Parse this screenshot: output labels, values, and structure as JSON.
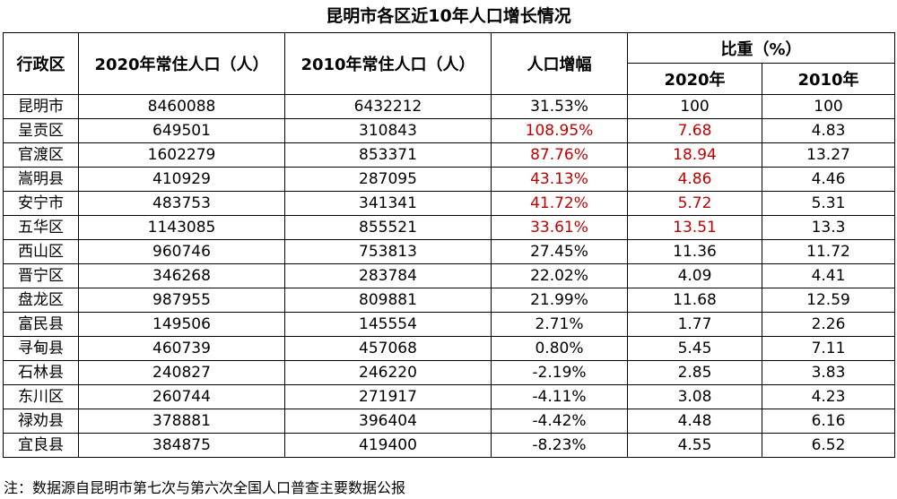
{
  "title": "昆明市各区近10年人口增长情况",
  "headers": {
    "district": "行政区",
    "pop2020": "2020年常住人口（人）",
    "pop2010": "2010年常住人口（人）",
    "growth": "人口增幅",
    "share": "比重（%）",
    "share2020": "2020年",
    "share2010": "2010年"
  },
  "highlight_color": "#c00000",
  "rows": [
    {
      "name": "昆明市",
      "pop2020": "8460088",
      "pop2010": "6432212",
      "growth": "31.53%",
      "share2020": "100",
      "share2010": "100",
      "hl": false
    },
    {
      "name": "呈贡区",
      "pop2020": "649501",
      "pop2010": "310843",
      "growth": "108.95%",
      "share2020": "7.68",
      "share2010": "4.83",
      "hl": true
    },
    {
      "name": "官渡区",
      "pop2020": "1602279",
      "pop2010": "853371",
      "growth": "87.76%",
      "share2020": "18.94",
      "share2010": "13.27",
      "hl": true
    },
    {
      "name": "嵩明县",
      "pop2020": "410929",
      "pop2010": "287095",
      "growth": "43.13%",
      "share2020": "4.86",
      "share2010": "4.46",
      "hl": true
    },
    {
      "name": "安宁市",
      "pop2020": "483753",
      "pop2010": "341341",
      "growth": "41.72%",
      "share2020": "5.72",
      "share2010": "5.31",
      "hl": true
    },
    {
      "name": "五华区",
      "pop2020": "1143085",
      "pop2010": "855521",
      "growth": "33.61%",
      "share2020": "13.51",
      "share2010": "13.3",
      "hl": true
    },
    {
      "name": "西山区",
      "pop2020": "960746",
      "pop2010": "753813",
      "growth": "27.45%",
      "share2020": "11.36",
      "share2010": "11.72",
      "hl": false
    },
    {
      "name": "晋宁区",
      "pop2020": "346268",
      "pop2010": "283784",
      "growth": "22.02%",
      "share2020": "4.09",
      "share2010": "4.41",
      "hl": false
    },
    {
      "name": "盘龙区",
      "pop2020": "987955",
      "pop2010": "809881",
      "growth": "21.99%",
      "share2020": "11.68",
      "share2010": "12.59",
      "hl": false
    },
    {
      "name": "富民县",
      "pop2020": "149506",
      "pop2010": "145554",
      "growth": "2.71%",
      "share2020": "1.77",
      "share2010": "2.26",
      "hl": false
    },
    {
      "name": "寻甸县",
      "pop2020": "460739",
      "pop2010": "457068",
      "growth": "0.80%",
      "share2020": "5.45",
      "share2010": "7.11",
      "hl": false
    },
    {
      "name": "石林县",
      "pop2020": "240827",
      "pop2010": "246220",
      "growth": "-2.19%",
      "share2020": "2.85",
      "share2010": "3.83",
      "hl": false
    },
    {
      "name": "东川区",
      "pop2020": "260744",
      "pop2010": "271917",
      "growth": "-4.11%",
      "share2020": "3.08",
      "share2010": "4.23",
      "hl": false
    },
    {
      "name": "禄劝县",
      "pop2020": "378881",
      "pop2010": "396404",
      "growth": "-4.42%",
      "share2020": "4.48",
      "share2010": "6.16",
      "hl": false
    },
    {
      "name": "宜良县",
      "pop2020": "384875",
      "pop2010": "419400",
      "growth": "-8.23%",
      "share2020": "4.55",
      "share2010": "6.52",
      "hl": false
    }
  ],
  "note": "注：数据源自昆明市第七次与第六次全国人口普查主要数据公报"
}
